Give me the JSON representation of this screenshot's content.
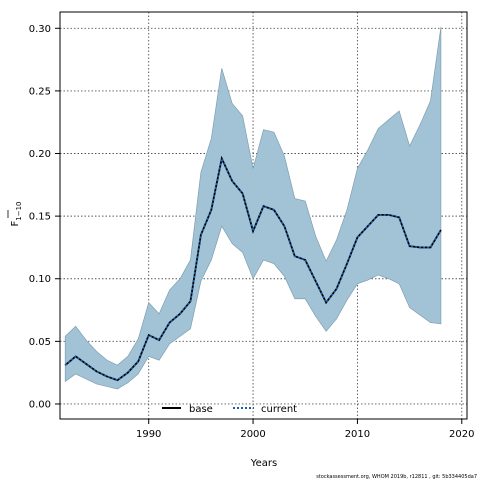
{
  "chart_data": {
    "type": "line",
    "xlabel": "Years",
    "ylabel_main": "F",
    "ylabel_sub": "1−10",
    "xlim": [
      1981.5,
      2020.5
    ],
    "ylim": [
      -0.012,
      0.313
    ],
    "xticks": [
      1990,
      2000,
      2010,
      2020
    ],
    "yticks": [
      0.0,
      0.05,
      0.1,
      0.15,
      0.2,
      0.25,
      0.3
    ],
    "ytick_labels": [
      "0.00",
      "0.05",
      "0.10",
      "0.15",
      "0.20",
      "0.25",
      "0.30"
    ],
    "grid": true,
    "legend_placement": "bottom-center",
    "legend": [
      {
        "name": "base",
        "style": "solid",
        "color": "#000000"
      },
      {
        "name": "current",
        "style": "dotted",
        "color": "#1a5ea8"
      }
    ],
    "x": [
      1982,
      1983,
      1984,
      1985,
      1986,
      1987,
      1988,
      1989,
      1990,
      1991,
      1992,
      1993,
      1994,
      1995,
      1996,
      1997,
      1998,
      1999,
      2000,
      2001,
      2002,
      2003,
      2004,
      2005,
      2006,
      2007,
      2008,
      2009,
      2010,
      2011,
      2012,
      2013,
      2014,
      2015,
      2016,
      2017,
      2018
    ],
    "series": [
      {
        "name": "current",
        "values": [
          0.031,
          0.038,
          0.032,
          0.026,
          0.022,
          0.019,
          0.025,
          0.034,
          0.055,
          0.051,
          0.065,
          0.072,
          0.082,
          0.135,
          0.155,
          0.196,
          0.178,
          0.168,
          0.138,
          0.158,
          0.155,
          0.142,
          0.118,
          0.115,
          0.098,
          0.081,
          0.092,
          0.112,
          0.133,
          0.142,
          0.151,
          0.151,
          0.149,
          0.126,
          0.125,
          0.125,
          0.139
        ]
      },
      {
        "name": "base",
        "values": [
          0.031,
          0.038,
          0.032,
          0.026,
          0.022,
          0.019,
          0.025,
          0.034,
          0.055,
          0.051,
          0.065,
          0.072,
          0.082,
          0.135,
          0.155,
          0.196,
          0.178,
          0.168,
          0.138,
          0.158,
          0.155,
          0.142,
          0.118,
          0.115,
          0.098,
          0.081,
          0.092,
          0.112,
          0.133,
          0.142,
          0.151,
          0.151,
          0.149,
          0.126,
          0.125,
          0.125,
          0.139
        ]
      }
    ],
    "band_upper": [
      0.054,
      0.062,
      0.051,
      0.042,
      0.035,
      0.031,
      0.038,
      0.052,
      0.081,
      0.072,
      0.091,
      0.1,
      0.115,
      0.185,
      0.212,
      0.268,
      0.24,
      0.23,
      0.188,
      0.219,
      0.217,
      0.198,
      0.164,
      0.162,
      0.134,
      0.114,
      0.131,
      0.155,
      0.188,
      0.203,
      0.22,
      0.227,
      0.234,
      0.206,
      0.223,
      0.242,
      0.301
    ],
    "band_lower": [
      0.018,
      0.024,
      0.02,
      0.016,
      0.014,
      0.012,
      0.017,
      0.024,
      0.038,
      0.035,
      0.048,
      0.054,
      0.06,
      0.098,
      0.115,
      0.142,
      0.128,
      0.121,
      0.1,
      0.115,
      0.112,
      0.102,
      0.084,
      0.084,
      0.07,
      0.058,
      0.068,
      0.083,
      0.096,
      0.099,
      0.103,
      0.1,
      0.096,
      0.077,
      0.071,
      0.065,
      0.064
    ],
    "band_color": "#a2c3d6",
    "footer": "stockassessment.org, WHOM 2019b, r12811 , git: 5b334405da7"
  }
}
